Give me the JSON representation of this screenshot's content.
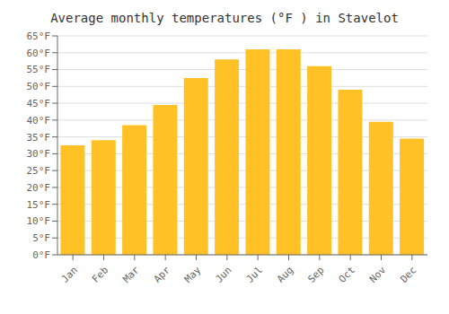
{
  "chart_data": {
    "type": "bar",
    "title": "Average monthly temperatures (°F ) in Stavelot",
    "categories": [
      "Jan",
      "Feb",
      "Mar",
      "Apr",
      "May",
      "Jun",
      "Jul",
      "Aug",
      "Sep",
      "Oct",
      "Nov",
      "Dec"
    ],
    "values": [
      32.5,
      34.0,
      38.5,
      44.5,
      52.5,
      58.0,
      61.0,
      61.0,
      56.0,
      49.0,
      39.5,
      34.5
    ],
    "color": "#FFC125",
    "ylim": [
      0,
      65
    ],
    "yticks": [
      {
        "value": 0,
        "label": "0°F"
      },
      {
        "value": 5,
        "label": "5°F"
      },
      {
        "value": 10,
        "label": "10°F"
      },
      {
        "value": 15,
        "label": "15°F"
      },
      {
        "value": 20,
        "label": "20°F"
      },
      {
        "value": 25,
        "label": "25°F"
      },
      {
        "value": 30,
        "label": "30°F"
      },
      {
        "value": 35,
        "label": "35°F"
      },
      {
        "value": 40,
        "label": "40°F"
      },
      {
        "value": 45,
        "label": "45°F"
      },
      {
        "value": 50,
        "label": "50°F"
      },
      {
        "value": 55,
        "label": "55°F"
      },
      {
        "value": 60,
        "label": "60°F"
      },
      {
        "value": 65,
        "label": "65°F"
      }
    ],
    "grid": true
  }
}
